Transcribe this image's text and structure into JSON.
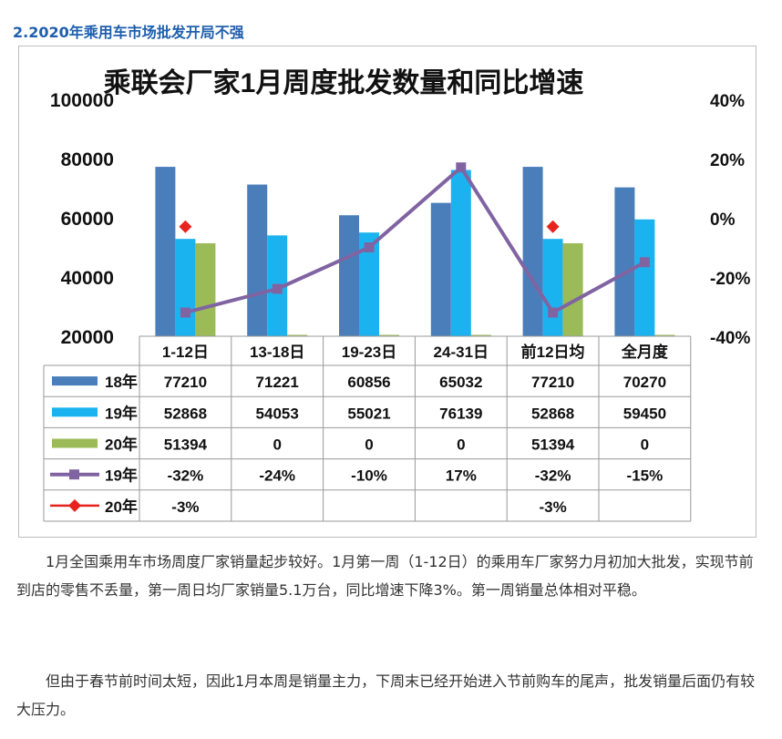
{
  "section_heading": "2.2020年乘用车市场批发开局不强",
  "chart_data": {
    "type": "bar",
    "title": "乘联会厂家1月周度批发数量和同比增速",
    "categories": [
      "1-12日",
      "13-18日",
      "19-23日",
      "24-31日",
      "前12日均",
      "全月度"
    ],
    "y_left_ticks": [
      "100000",
      "80000",
      "60000",
      "40000",
      "20000"
    ],
    "y_left_range": [
      20000,
      100000
    ],
    "y_right_ticks": [
      "40%",
      "20%",
      "0%",
      "-20%",
      "-40%"
    ],
    "y_right_range": [
      -40,
      40
    ],
    "series": [
      {
        "name": "18年",
        "kind": "bar",
        "color": "#4a7ebb",
        "values": [
          77210,
          71221,
          60856,
          65032,
          77210,
          70270
        ],
        "labels": [
          "77210",
          "71221",
          "60856",
          "65032",
          "77210",
          "70270"
        ]
      },
      {
        "name": "19年",
        "kind": "bar",
        "color": "#1bb3ef",
        "values": [
          52868,
          54053,
          55021,
          76139,
          52868,
          59450
        ],
        "labels": [
          "52868",
          "54053",
          "55021",
          "76139",
          "52868",
          "59450"
        ]
      },
      {
        "name": "20年",
        "kind": "bar",
        "color": "#9bbb59",
        "values": [
          51394,
          0,
          0,
          0,
          51394,
          0
        ],
        "labels": [
          "51394",
          "0",
          "0",
          "0",
          "51394",
          "0"
        ]
      },
      {
        "name": "19年",
        "kind": "line",
        "color": "#8064a2",
        "values": [
          -32,
          -24,
          -10,
          17,
          -32,
          -15
        ],
        "labels": [
          "-32%",
          "-24%",
          "-10%",
          "17%",
          "-32%",
          "-15%"
        ]
      },
      {
        "name": "20年",
        "kind": "marker",
        "color": "#e8231e",
        "values": [
          -3,
          null,
          null,
          null,
          -3,
          null
        ],
        "labels": [
          "-3%",
          "",
          "",
          "",
          "-3%",
          ""
        ]
      }
    ],
    "legend_position": "data-table"
  },
  "paragraphs": [
    "1月全国乘用车市场周度厂家销量起步较好。1月第一周（1-12日）的乘用车厂家努力月初加大批发，实现节前到店的零售不丢量，第一周日均厂家销量5.1万台，同比增速下降3%。第一周销量总体相对平稳。",
    "但由于春节前时间太短，因此1月本周是销量主力，下周末已经开始进入节前购车的尾声，批发销量后面仍有较大压力。"
  ]
}
